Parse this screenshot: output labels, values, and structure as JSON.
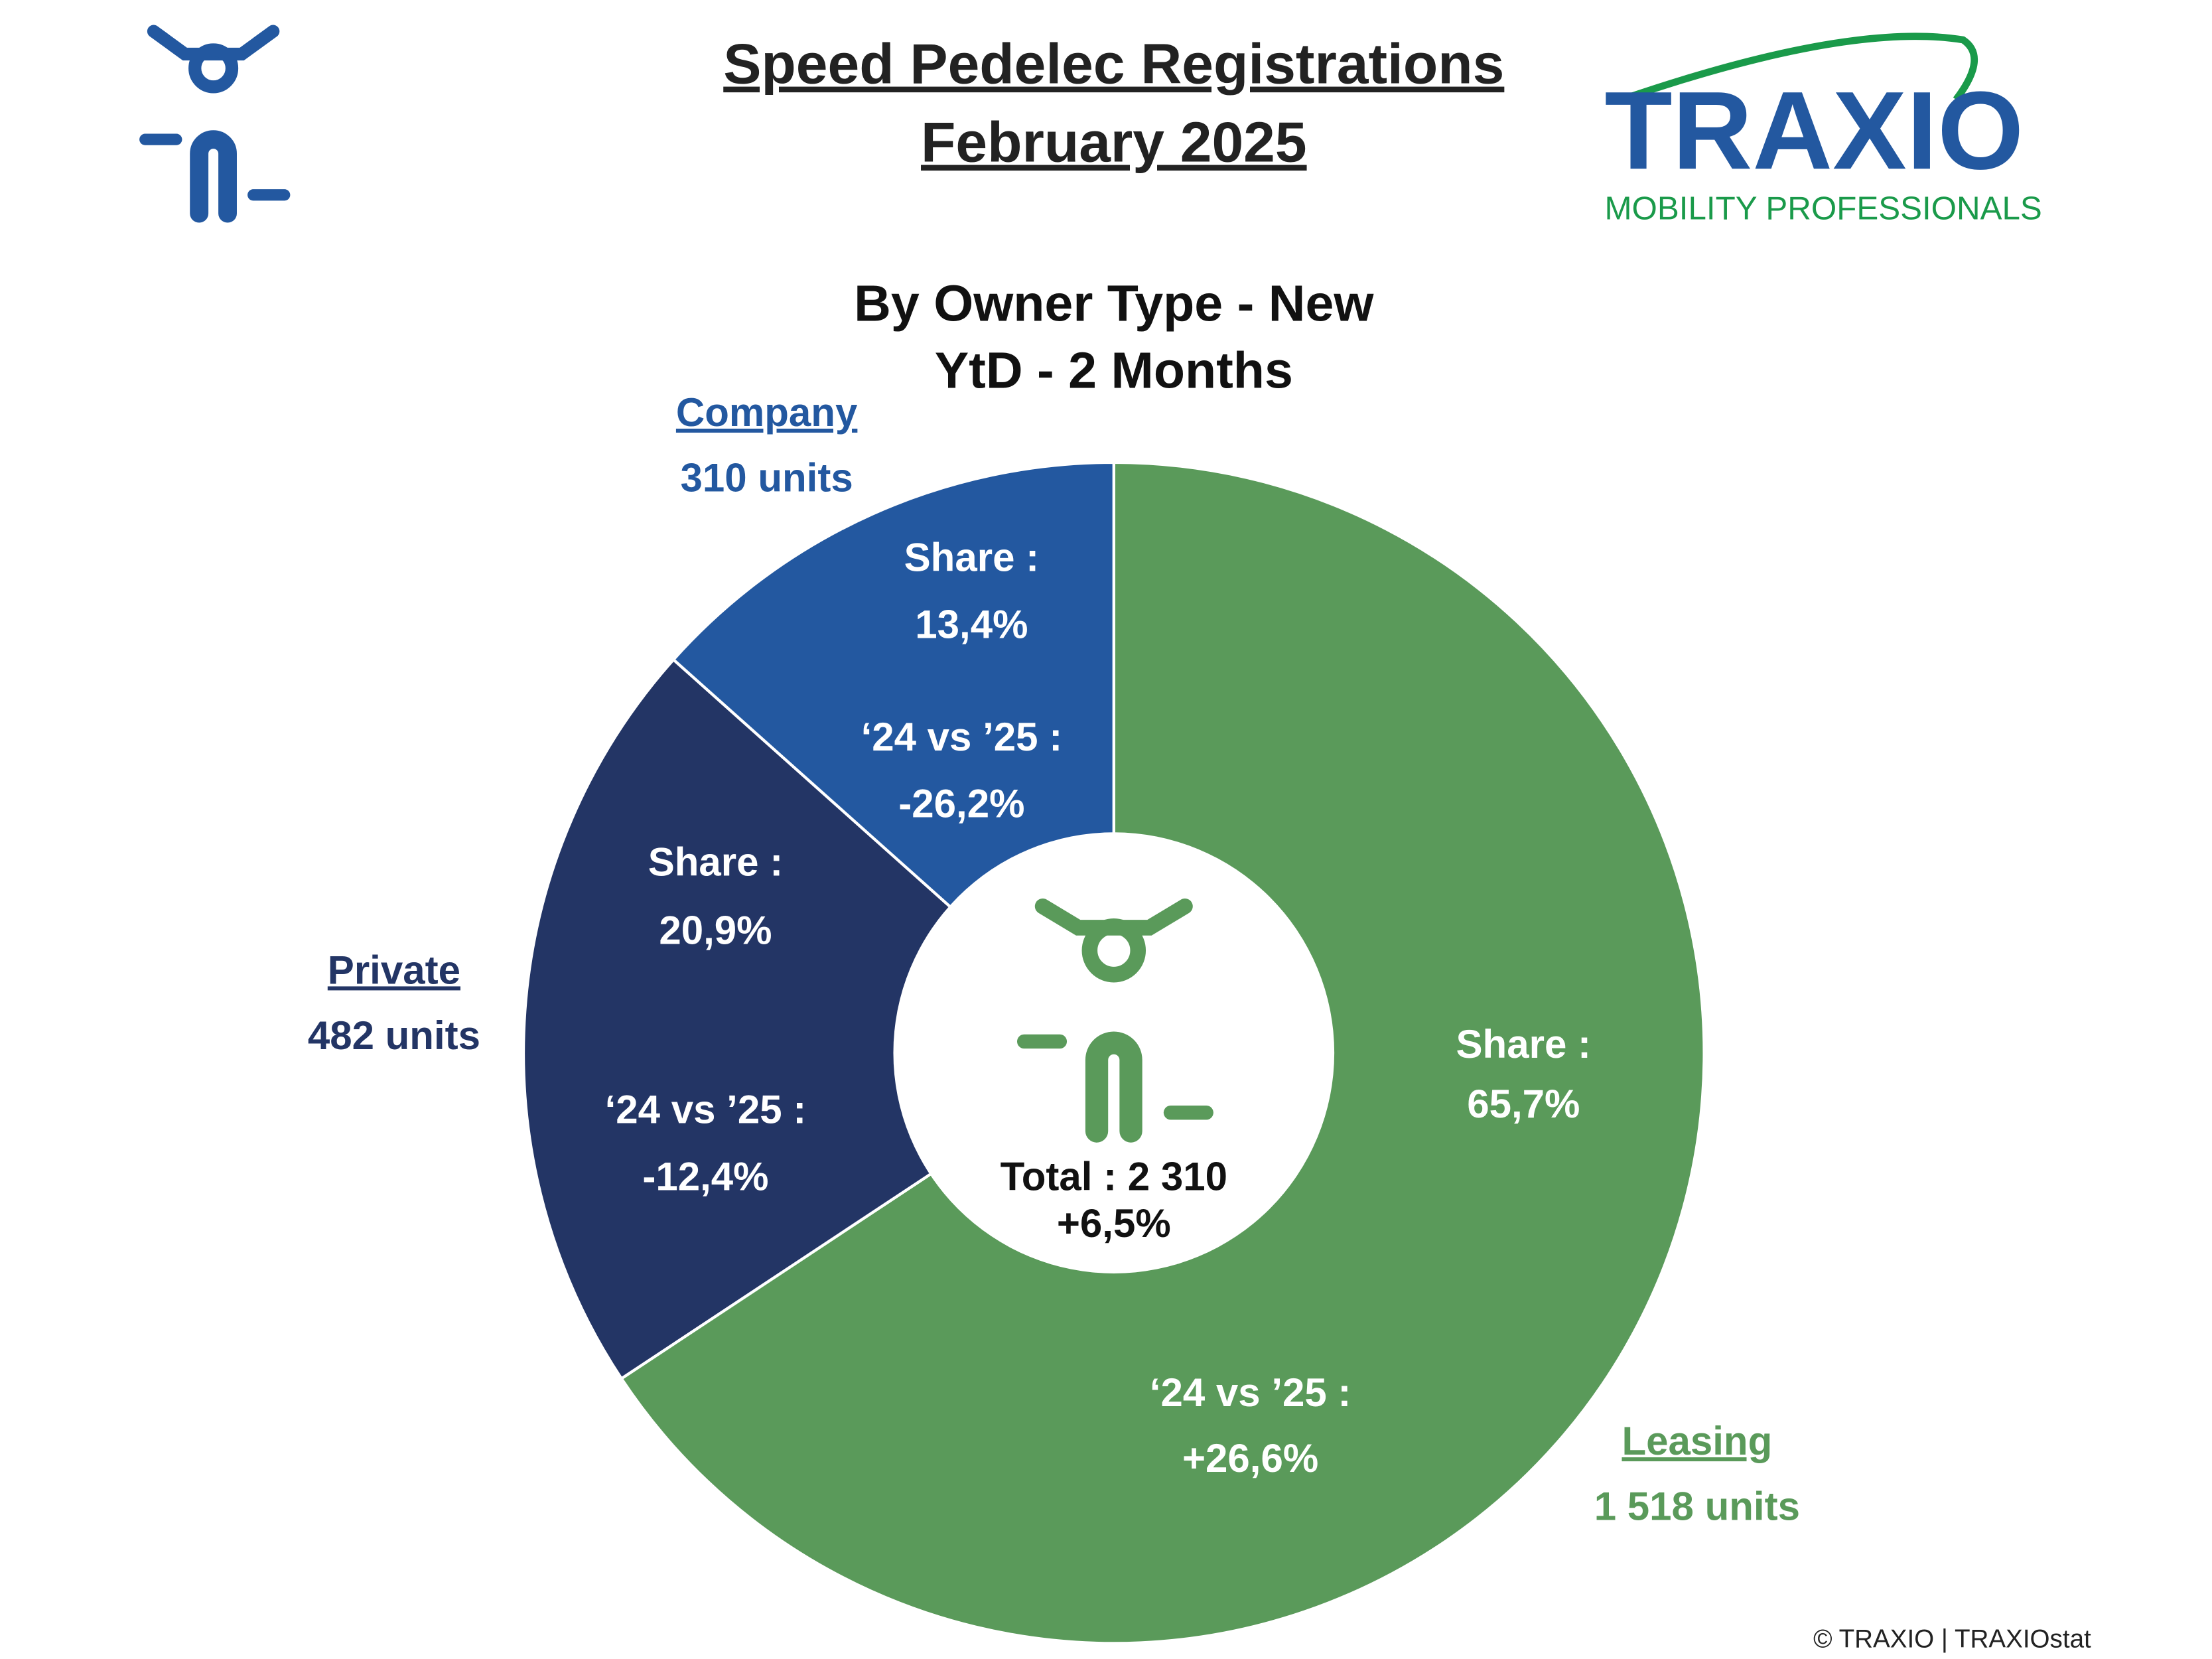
{
  "header": {
    "title_lines": [
      "Speed Pedelec Registrations",
      "February 2025"
    ],
    "logo_text": "TRAXIO",
    "logo_tagline": "MOBILITY PROFESSIONALS"
  },
  "chart_data": {
    "type": "pie",
    "donut": true,
    "title": "By Owner Type - New",
    "subtitle": "YtD - 2 Months",
    "categories": [
      "Leasing",
      "Private",
      "Company"
    ],
    "values": [
      65.7,
      20.9,
      13.4
    ],
    "value_labels": [
      "65,7%",
      "20,9%",
      "13,4%"
    ],
    "colors": [
      "#5a9a5a",
      "#233565",
      "#2358a0"
    ],
    "share_heading": "Share :",
    "units": [
      {
        "value": 1518,
        "label": "1 518 units"
      },
      {
        "value": 482,
        "label": "482 units"
      },
      {
        "value": 310,
        "label": "310 units"
      }
    ],
    "change_heading": "‘24 vs ’25 :",
    "changes": [
      {
        "value": 26.6,
        "label": "+26,6%"
      },
      {
        "value": -12.4,
        "label": "-12,4%"
      },
      {
        "value": -26.2,
        "label": "-26,2%"
      }
    ],
    "total": {
      "value": 2310,
      "label": "Total : 2 310"
    },
    "total_change": {
      "value": 6.5,
      "label": "+6,5%"
    }
  },
  "footer": "© TRAXIO | TRAXIOstat"
}
